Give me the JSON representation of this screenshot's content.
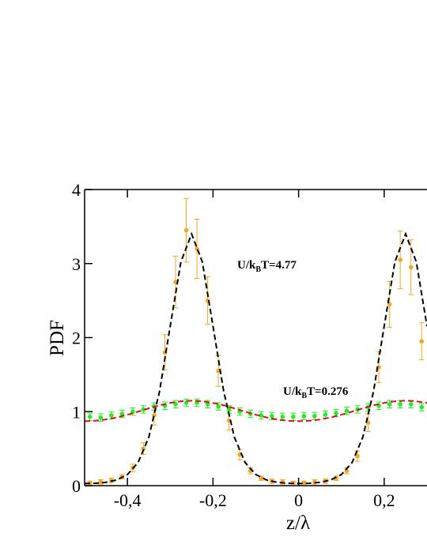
{
  "chart_data": {
    "type": "line",
    "xlabel": "z/λ",
    "ylabel": "PDF",
    "xlim": [
      -0.5,
      0.3
    ],
    "ylim": [
      0,
      4
    ],
    "xticks": [
      {
        "value": -0.4,
        "label": "-0,4"
      },
      {
        "value": -0.2,
        "label": "-0,2"
      },
      0,
      {
        "value": 0.2,
        "label": "0,2"
      }
    ],
    "yticks": [
      0,
      1,
      2,
      3,
      4
    ],
    "annotations": [
      {
        "parts": [
          "U/k",
          "B",
          "T=4.77"
        ]
      },
      {
        "parts": [
          "U/k",
          "B",
          "T=0.276"
        ]
      }
    ],
    "series": [
      {
        "type": "scatter",
        "marker": "circle",
        "color": "#f5a623",
        "x": [
          -0.4875,
          -0.4625,
          -0.4375,
          -0.4125,
          -0.3875,
          -0.3625,
          -0.3375,
          -0.3125,
          -0.2875,
          -0.2625,
          -0.2375,
          -0.2125,
          -0.1875,
          -0.1625,
          -0.1375,
          -0.1125,
          -0.0875,
          -0.0625,
          -0.0375,
          -0.0125,
          0.0125,
          0.0375,
          0.0625,
          0.0875,
          0.1125,
          0.1375,
          0.1625,
          0.1875,
          0.2125,
          0.2375,
          0.2625,
          0.2875
        ],
        "values": [
          0.04,
          0.05,
          0.07,
          0.12,
          0.24,
          0.5,
          0.95,
          1.8,
          2.75,
          3.45,
          3.2,
          2.5,
          1.55,
          0.88,
          0.42,
          0.2,
          0.1,
          0.06,
          0.05,
          0.04,
          0.04,
          0.05,
          0.06,
          0.1,
          0.2,
          0.4,
          0.85,
          1.6,
          2.45,
          3.05,
          2.95,
          1.95
        ],
        "errors": [
          0.02,
          0.03,
          0.03,
          0.03,
          0.05,
          0.08,
          0.13,
          0.24,
          0.35,
          0.43,
          0.4,
          0.32,
          0.21,
          0.13,
          0.07,
          0.04,
          0.03,
          0.03,
          0.03,
          0.02,
          0.02,
          0.03,
          0.03,
          0.03,
          0.04,
          0.07,
          0.12,
          0.21,
          0.31,
          0.39,
          0.37,
          0.25
        ]
      },
      {
        "type": "scatter",
        "marker": "circle",
        "color": "#22ee22",
        "x": [
          -0.4875,
          -0.4625,
          -0.4375,
          -0.4125,
          -0.3875,
          -0.3625,
          -0.3375,
          -0.3125,
          -0.2875,
          -0.2625,
          -0.2375,
          -0.2125,
          -0.1875,
          -0.1625,
          -0.1375,
          -0.1125,
          -0.0875,
          -0.0625,
          -0.0375,
          -0.0125,
          0.0125,
          0.0375,
          0.0625,
          0.0875,
          0.1125,
          0.1375,
          0.1625,
          0.1875,
          0.2125,
          0.2375,
          0.2625,
          0.2875
        ],
        "values": [
          0.93,
          0.92,
          0.95,
          0.97,
          1.0,
          1.03,
          1.07,
          1.08,
          1.1,
          1.12,
          1.12,
          1.1,
          1.07,
          1.03,
          1.0,
          0.97,
          0.95,
          0.94,
          0.93,
          0.93,
          0.94,
          0.94,
          0.96,
          0.98,
          1.01,
          1.03,
          1.06,
          1.08,
          1.1,
          1.1,
          1.1,
          1.06
        ],
        "errors": [
          0.05,
          0.05,
          0.05,
          0.05,
          0.05,
          0.05,
          0.05,
          0.05,
          0.05,
          0.05,
          0.05,
          0.05,
          0.05,
          0.05,
          0.05,
          0.05,
          0.05,
          0.05,
          0.05,
          0.05,
          0.05,
          0.05,
          0.05,
          0.05,
          0.05,
          0.05,
          0.05,
          0.05,
          0.05,
          0.05,
          0.05,
          0.05
        ]
      },
      {
        "type": "line",
        "style": "dashed",
        "color": "#000000",
        "x": [
          -0.5,
          -0.475,
          -0.45,
          -0.425,
          -0.4,
          -0.375,
          -0.35,
          -0.325,
          -0.3,
          -0.275,
          -0.25,
          -0.225,
          -0.2,
          -0.175,
          -0.15,
          -0.125,
          -0.1,
          -0.075,
          -0.05,
          -0.025,
          0,
          0.025,
          0.05,
          0.075,
          0.1,
          0.125,
          0.15,
          0.175,
          0.2,
          0.225,
          0.25,
          0.275,
          0.3
        ],
        "values": [
          0.029,
          0.032,
          0.045,
          0.077,
          0.15,
          0.313,
          0.654,
          1.272,
          2.154,
          3.024,
          3.4,
          3.024,
          2.154,
          1.272,
          0.654,
          0.313,
          0.15,
          0.077,
          0.045,
          0.032,
          0.029,
          0.032,
          0.045,
          0.077,
          0.15,
          0.313,
          0.654,
          1.272,
          2.154,
          3.024,
          3.4,
          3.024,
          2.154
        ]
      },
      {
        "type": "line",
        "style": "dashed",
        "color": "#dd1111",
        "x": [
          -0.5,
          -0.475,
          -0.45,
          -0.425,
          -0.4,
          -0.375,
          -0.35,
          -0.325,
          -0.3,
          -0.275,
          -0.25,
          -0.225,
          -0.2,
          -0.175,
          -0.15,
          -0.125,
          -0.1,
          -0.075,
          -0.05,
          -0.025,
          0,
          0.025,
          0.05,
          0.075,
          0.1,
          0.125,
          0.15,
          0.175,
          0.2,
          0.225,
          0.25,
          0.275,
          0.3
        ],
        "values": [
          0.871,
          0.877,
          0.894,
          0.922,
          0.958,
          1.0,
          1.044,
          1.085,
          1.118,
          1.14,
          1.148,
          1.14,
          1.118,
          1.085,
          1.044,
          1.0,
          0.958,
          0.922,
          0.894,
          0.877,
          0.871,
          0.877,
          0.894,
          0.922,
          0.958,
          1.0,
          1.044,
          1.085,
          1.118,
          1.14,
          1.148,
          1.14,
          1.118
        ]
      }
    ]
  }
}
